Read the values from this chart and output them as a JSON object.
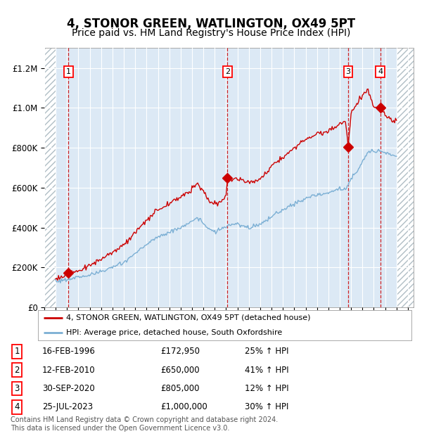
{
  "title": "4, STONOR GREEN, WATLINGTON, OX49 5PT",
  "subtitle": "Price paid vs. HM Land Registry's House Price Index (HPI)",
  "title_fontsize": 12,
  "subtitle_fontsize": 10,
  "ylim": [
    0,
    1300000
  ],
  "xlim_start": 1994.0,
  "xlim_end": 2026.5,
  "data_start": 1995.0,
  "data_end": 2025.0,
  "background_color": "#ffffff",
  "plot_bg_color": "#dce9f5",
  "hatch_color": "#b0bec5",
  "grid_color": "#ffffff",
  "red_line_color": "#cc0000",
  "blue_line_color": "#7bafd4",
  "sale_dates": [
    1996.12,
    2010.12,
    2020.75,
    2023.56
  ],
  "sale_prices": [
    172950,
    650000,
    805000,
    1000000
  ],
  "sale_labels": [
    "1",
    "2",
    "3",
    "4"
  ],
  "legend_entries": [
    "4, STONOR GREEN, WATLINGTON, OX49 5PT (detached house)",
    "HPI: Average price, detached house, South Oxfordshire"
  ],
  "table_rows": [
    [
      "1",
      "16-FEB-1996",
      "£172,950",
      "25% ↑ HPI"
    ],
    [
      "2",
      "12-FEB-2010",
      "£650,000",
      "41% ↑ HPI"
    ],
    [
      "3",
      "30-SEP-2020",
      "£805,000",
      "12% ↑ HPI"
    ],
    [
      "4",
      "25-JUL-2023",
      "£1,000,000",
      "30% ↑ HPI"
    ]
  ],
  "footer": "Contains HM Land Registry data © Crown copyright and database right 2024.\nThis data is licensed under the Open Government Licence v3.0.",
  "hpi_anchors": [
    [
      1995.0,
      130000
    ],
    [
      1996.0,
      140000
    ],
    [
      1997.0,
      152000
    ],
    [
      1998.0,
      163000
    ],
    [
      1999.0,
      178000
    ],
    [
      2000.0,
      200000
    ],
    [
      2001.0,
      225000
    ],
    [
      2002.0,
      270000
    ],
    [
      2003.0,
      315000
    ],
    [
      2004.0,
      355000
    ],
    [
      2005.0,
      375000
    ],
    [
      2006.0,
      400000
    ],
    [
      2007.0,
      430000
    ],
    [
      2007.5,
      450000
    ],
    [
      2008.0,
      420000
    ],
    [
      2008.5,
      395000
    ],
    [
      2009.0,
      375000
    ],
    [
      2009.5,
      390000
    ],
    [
      2010.0,
      405000
    ],
    [
      2010.5,
      415000
    ],
    [
      2011.0,
      415000
    ],
    [
      2011.5,
      405000
    ],
    [
      2012.0,
      400000
    ],
    [
      2012.5,
      410000
    ],
    [
      2013.0,
      415000
    ],
    [
      2013.5,
      430000
    ],
    [
      2014.0,
      455000
    ],
    [
      2014.5,
      475000
    ],
    [
      2015.0,
      490000
    ],
    [
      2015.5,
      505000
    ],
    [
      2016.0,
      520000
    ],
    [
      2016.5,
      530000
    ],
    [
      2017.0,
      545000
    ],
    [
      2017.5,
      555000
    ],
    [
      2018.0,
      565000
    ],
    [
      2018.5,
      565000
    ],
    [
      2019.0,
      575000
    ],
    [
      2019.5,
      585000
    ],
    [
      2020.0,
      595000
    ],
    [
      2020.5,
      590000
    ],
    [
      2021.0,
      640000
    ],
    [
      2021.5,
      680000
    ],
    [
      2022.0,
      730000
    ],
    [
      2022.5,
      775000
    ],
    [
      2023.0,
      790000
    ],
    [
      2023.5,
      785000
    ],
    [
      2024.0,
      775000
    ],
    [
      2024.5,
      765000
    ],
    [
      2025.0,
      760000
    ]
  ],
  "price_anchors": [
    [
      1995.0,
      145000
    ],
    [
      1995.5,
      155000
    ],
    [
      1996.0,
      162000
    ],
    [
      1996.12,
      172950
    ],
    [
      1997.0,
      185000
    ],
    [
      1998.0,
      210000
    ],
    [
      1999.0,
      240000
    ],
    [
      2000.0,
      278000
    ],
    [
      2001.0,
      315000
    ],
    [
      2002.0,
      375000
    ],
    [
      2003.0,
      435000
    ],
    [
      2004.0,
      490000
    ],
    [
      2005.0,
      520000
    ],
    [
      2006.0,
      555000
    ],
    [
      2007.0,
      590000
    ],
    [
      2007.5,
      620000
    ],
    [
      2008.0,
      580000
    ],
    [
      2008.5,
      535000
    ],
    [
      2009.0,
      510000
    ],
    [
      2009.5,
      530000
    ],
    [
      2010.0,
      555000
    ],
    [
      2010.12,
      650000
    ],
    [
      2010.5,
      640000
    ],
    [
      2011.0,
      645000
    ],
    [
      2011.5,
      635000
    ],
    [
      2012.0,
      625000
    ],
    [
      2012.5,
      635000
    ],
    [
      2013.0,
      645000
    ],
    [
      2013.5,
      670000
    ],
    [
      2014.0,
      705000
    ],
    [
      2014.5,
      735000
    ],
    [
      2015.0,
      755000
    ],
    [
      2015.5,
      775000
    ],
    [
      2016.0,
      800000
    ],
    [
      2016.5,
      820000
    ],
    [
      2017.0,
      845000
    ],
    [
      2017.5,
      860000
    ],
    [
      2018.0,
      870000
    ],
    [
      2018.5,
      875000
    ],
    [
      2019.0,
      885000
    ],
    [
      2019.5,
      900000
    ],
    [
      2020.0,
      920000
    ],
    [
      2020.5,
      935000
    ],
    [
      2020.75,
      805000
    ],
    [
      2021.0,
      980000
    ],
    [
      2021.5,
      1020000
    ],
    [
      2022.0,
      1060000
    ],
    [
      2022.5,
      1090000
    ],
    [
      2023.0,
      1000000
    ],
    [
      2023.56,
      1000000
    ],
    [
      2024.0,
      960000
    ],
    [
      2024.5,
      940000
    ],
    [
      2025.0,
      930000
    ]
  ]
}
